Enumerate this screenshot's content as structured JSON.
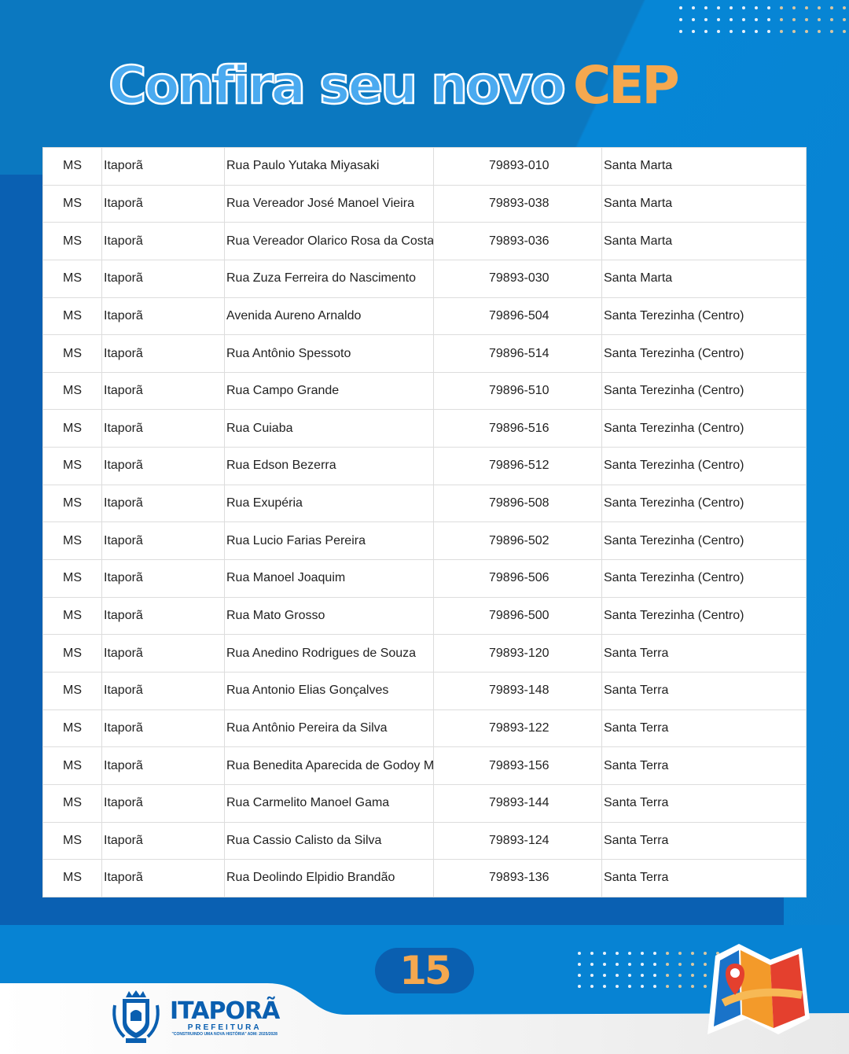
{
  "title": {
    "outline": "Confira seu novo",
    "highlight": "CEP"
  },
  "colors": {
    "accent": "#f5a84f",
    "blue": "#0a60b2"
  },
  "rows": [
    [
      "MS",
      "Itaporã",
      "Rua Paulo Yutaka Miyasaki",
      "79893-010",
      "Santa Marta"
    ],
    [
      "MS",
      "Itaporã",
      "Rua Vereador José Manoel Vieira",
      "79893-038",
      "Santa Marta"
    ],
    [
      "MS",
      "Itaporã",
      "Rua Vereador Olarico Rosa da Costa",
      "79893-036",
      "Santa Marta"
    ],
    [
      "MS",
      "Itaporã",
      "Rua Zuza Ferreira do Nascimento",
      "79893-030",
      "Santa Marta"
    ],
    [
      "MS",
      "Itaporã",
      "Avenida Aureno Arnaldo",
      "79896-504",
      "Santa Terezinha (Centro)"
    ],
    [
      "MS",
      "Itaporã",
      "Rua Antônio Spessoto",
      "79896-514",
      "Santa Terezinha (Centro)"
    ],
    [
      "MS",
      "Itaporã",
      "Rua Campo Grande",
      "79896-510",
      "Santa Terezinha (Centro)"
    ],
    [
      "MS",
      "Itaporã",
      "Rua Cuiaba",
      "79896-516",
      "Santa Terezinha (Centro)"
    ],
    [
      "MS",
      "Itaporã",
      "Rua Edson Bezerra",
      "79896-512",
      "Santa Terezinha (Centro)"
    ],
    [
      "MS",
      "Itaporã",
      "Rua Exupéria",
      "79896-508",
      "Santa Terezinha (Centro)"
    ],
    [
      "MS",
      "Itaporã",
      "Rua Lucio Farias Pereira",
      "79896-502",
      "Santa Terezinha (Centro)"
    ],
    [
      "MS",
      "Itaporã",
      "Rua Manoel Joaquim",
      "79896-506",
      "Santa Terezinha (Centro)"
    ],
    [
      "MS",
      "Itaporã",
      "Rua Mato Grosso",
      "79896-500",
      "Santa Terezinha (Centro)"
    ],
    [
      "MS",
      "Itaporã",
      "Rua Anedino Rodrigues de Souza",
      "79893-120",
      "Santa Terra"
    ],
    [
      "MS",
      "Itaporã",
      "Rua Antonio Elias Gonçalves",
      "79893-148",
      "Santa Terra"
    ],
    [
      "MS",
      "Itaporã",
      "Rua Antônio Pereira da Silva",
      "79893-122",
      "Santa Terra"
    ],
    [
      "MS",
      "Itaporã",
      "Rua Benedita Aparecida de Godoy Mo",
      "79893-156",
      "Santa Terra"
    ],
    [
      "MS",
      "Itaporã",
      "Rua Carmelito Manoel Gama",
      "79893-144",
      "Santa Terra"
    ],
    [
      "MS",
      "Itaporã",
      "Rua Cassio Calisto da Silva",
      "79893-124",
      "Santa Terra"
    ],
    [
      "MS",
      "Itaporã",
      "Rua Deolindo Elpidio Brandão",
      "79893-136",
      "Santa Terra"
    ]
  ],
  "page_number": "15",
  "logo": {
    "name": "ITAPORÃ",
    "subtitle": "PREFEITURA",
    "tagline": "\"CONSTRUINDO UMA NOVA HISTÓRIA\" ADM: 2025/2028"
  }
}
